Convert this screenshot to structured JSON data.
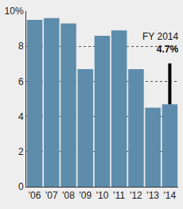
{
  "chart_data": {
    "type": "bar",
    "categories": [
      "'06",
      "'07",
      "'08",
      "'09",
      "'10",
      "'11",
      "'12",
      "'13",
      "'14"
    ],
    "values": [
      9.5,
      9.6,
      9.3,
      6.7,
      8.6,
      8.9,
      6.7,
      4.5,
      4.7
    ],
    "color": "#5e8dac",
    "ylim": [
      0,
      10
    ],
    "yticks": [
      0,
      2,
      4,
      6,
      8,
      {
        "value": 10,
        "label": "10%"
      }
    ],
    "grid": true,
    "annotations": [
      {
        "category": "'14",
        "text": "FY 2014",
        "value_label": "4.7%"
      }
    ]
  }
}
